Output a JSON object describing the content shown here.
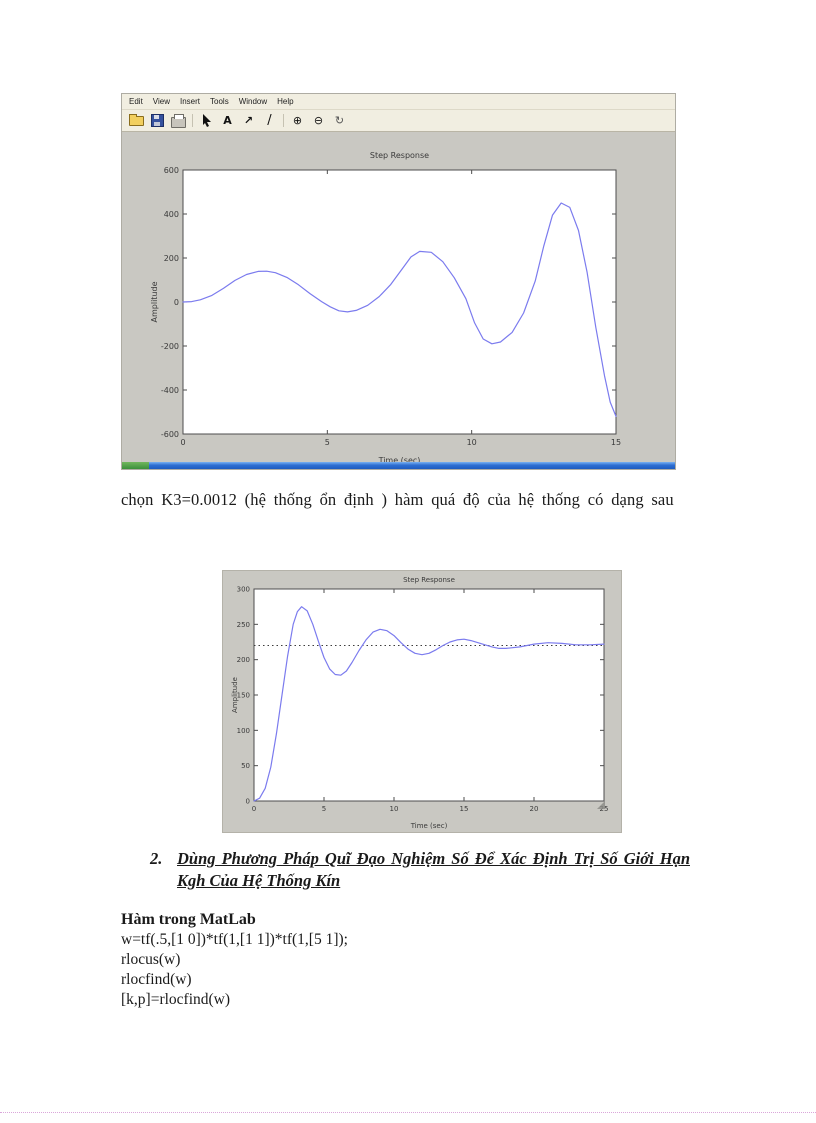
{
  "figure1": {
    "menu": [
      "Edit",
      "View",
      "Insert",
      "Tools",
      "Window",
      "Help"
    ],
    "toolbar": [
      {
        "name": "open-file",
        "glyph": ""
      },
      {
        "name": "save",
        "glyph": ""
      },
      {
        "name": "print",
        "glyph": ""
      },
      {
        "name": "pointer",
        "glyph": ""
      },
      {
        "name": "insert-text",
        "glyph": "A"
      },
      {
        "name": "insert-arrow",
        "glyph": "↗"
      },
      {
        "name": "insert-line",
        "glyph": "/"
      },
      {
        "name": "zoom-in",
        "glyph": "⊕"
      },
      {
        "name": "zoom-out",
        "glyph": "⊖"
      },
      {
        "name": "rotate-3d",
        "glyph": "↻"
      }
    ]
  },
  "paragraph": "chọn K3=0.0012 (hệ thống ổn định ) hàm quá độ của hệ thống có dạng sau",
  "section2": {
    "number": "2.",
    "title": "Dùng Phương Pháp Quĩ Đạo Nghiệm Số Để Xác Định Trị Số Giới Hạn Kgh Của Hệ Thống Kín"
  },
  "matlab": {
    "heading": "Hàm trong MatLab",
    "code": [
      "w=tf(.5,[1 0])*tf(1,[1 1])*tf(1,[5 1]);",
      "rlocus(w)",
      "rlocfind(w)",
      "[k,p]=rlocfind(w)"
    ]
  },
  "chart_data": [
    {
      "type": "line",
      "title": "Step Response",
      "xlabel": "Time (sec)",
      "ylabel": "Amplitude",
      "xlim": [
        0,
        15
      ],
      "ylim": [
        -600,
        600
      ],
      "xticks": [
        0,
        5,
        10,
        15
      ],
      "yticks": [
        -600,
        -400,
        -200,
        0,
        200,
        400,
        600
      ],
      "grid": false,
      "legend": null,
      "line_color": "#7b7bee",
      "description": "unstable growing oscillation",
      "x": [
        0,
        0.3,
        0.6,
        1,
        1.4,
        1.8,
        2.2,
        2.6,
        2.9,
        3.2,
        3.6,
        4,
        4.4,
        4.8,
        5.1,
        5.4,
        5.7,
        6,
        6.4,
        6.8,
        7.2,
        7.6,
        7.9,
        8.2,
        8.6,
        9,
        9.4,
        9.8,
        10.1,
        10.4,
        10.7,
        11,
        11.4,
        11.8,
        12.2,
        12.5,
        12.8,
        13.1,
        13.4,
        13.7,
        14,
        14.3,
        14.6,
        14.8,
        15
      ],
      "y": [
        0,
        2,
        10,
        30,
        62,
        98,
        125,
        139,
        140,
        133,
        112,
        78,
        38,
        2,
        -22,
        -40,
        -45,
        -38,
        -15,
        25,
        80,
        152,
        205,
        230,
        226,
        183,
        110,
        15,
        -95,
        -168,
        -190,
        -182,
        -138,
        -50,
        95,
        255,
        395,
        450,
        430,
        325,
        135,
        -115,
        -335,
        -455,
        -520
      ]
    },
    {
      "type": "line",
      "title": "Step Response",
      "xlabel": "Time (sec)",
      "ylabel": "Amplitude",
      "xlim": [
        0,
        25
      ],
      "ylim": [
        0,
        300
      ],
      "xticks": [
        0,
        5,
        10,
        15,
        20,
        25
      ],
      "yticks": [
        0,
        50,
        100,
        150,
        200,
        250,
        300
      ],
      "grid": false,
      "legend": null,
      "ref_line": 220,
      "line_color": "#7b7bee",
      "description": "stable damped step response settling near 220",
      "x": [
        0,
        0.4,
        0.8,
        1.2,
        1.6,
        2,
        2.4,
        2.8,
        3.1,
        3.4,
        3.8,
        4.2,
        4.6,
        5,
        5.4,
        5.8,
        6.2,
        6.6,
        7,
        7.5,
        8,
        8.5,
        9,
        9.5,
        10,
        10.5,
        11,
        11.5,
        12,
        12.5,
        13,
        13.5,
        14,
        14.5,
        15,
        15.5,
        16,
        16.5,
        17,
        17.5,
        18,
        19,
        20,
        21,
        22,
        23,
        24,
        25
      ],
      "y": [
        0,
        4,
        18,
        48,
        95,
        150,
        205,
        250,
        268,
        275,
        269,
        250,
        226,
        203,
        187,
        179,
        178,
        184,
        196,
        213,
        228,
        239,
        243,
        241,
        234,
        224,
        215,
        209,
        207,
        209,
        214,
        220,
        225,
        228,
        229,
        227,
        224,
        221,
        218,
        216,
        216,
        218,
        222,
        224,
        223,
        221,
        221,
        222
      ]
    }
  ]
}
